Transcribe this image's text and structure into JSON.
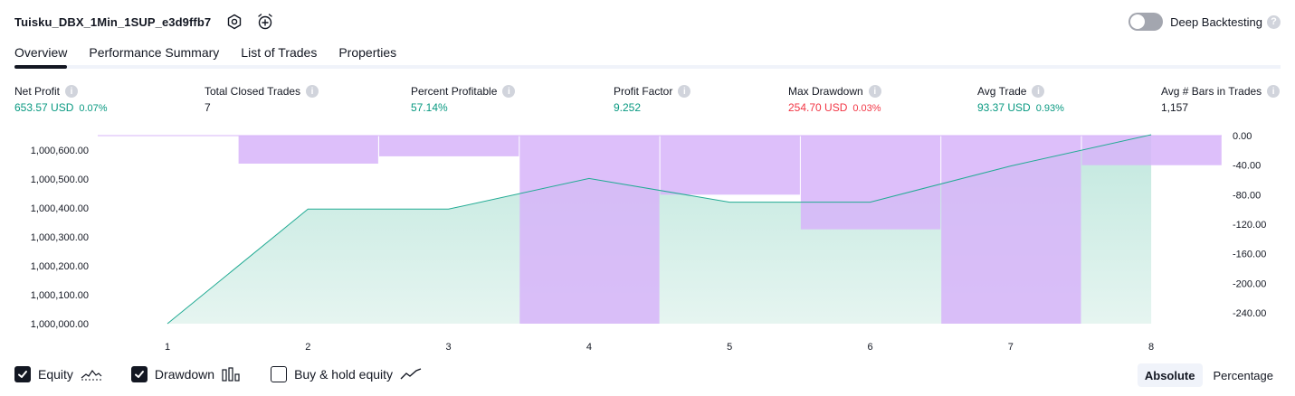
{
  "header": {
    "strategy_name": "Tuisku_DBX_1Min_1SUP_e3d9ffb7",
    "icons": [
      "settings-icon",
      "alarm-add-icon"
    ]
  },
  "deep_backtesting": {
    "label": "Deep Backtesting",
    "enabled": false,
    "help": "?"
  },
  "tabs": [
    {
      "label": "Overview",
      "active": true
    },
    {
      "label": "Performance Summary",
      "active": false
    },
    {
      "label": "List of Trades",
      "active": false
    },
    {
      "label": "Properties",
      "active": false
    }
  ],
  "metrics": {
    "net_profit": {
      "label": "Net Profit",
      "value": "653.57 USD",
      "sub": "0.07%"
    },
    "total_closed_trades": {
      "label": "Total Closed Trades",
      "value": "7"
    },
    "percent_profitable": {
      "label": "Percent Profitable",
      "value": "57.14%"
    },
    "profit_factor": {
      "label": "Profit Factor",
      "value": "9.252"
    },
    "max_drawdown": {
      "label": "Max Drawdown",
      "value": "254.70 USD",
      "sub": "0.03%"
    },
    "avg_trade": {
      "label": "Avg Trade",
      "value": "93.37 USD",
      "sub": "0.93%"
    },
    "avg_bars": {
      "label": "Avg # Bars in Trades",
      "value": "1,157"
    },
    "info_glyph": "i"
  },
  "chart_data": {
    "type": "area",
    "x": [
      1,
      2,
      3,
      4,
      5,
      6,
      7,
      8
    ],
    "x_ticks": [
      "1",
      "2",
      "3",
      "4",
      "5",
      "6",
      "7",
      "8"
    ],
    "left_axis": {
      "ticks": [
        "1,000,000.00",
        "1,000,100.00",
        "1,000,200.00",
        "1,000,300.00",
        "1,000,400.00",
        "1,000,500.00",
        "1,000,600.00"
      ],
      "range": [
        1000000,
        1000600
      ]
    },
    "right_axis": {
      "ticks": [
        "0.00",
        "-40.00",
        "-80.00",
        "-120.00",
        "-160.00",
        "-200.00",
        "-240.00"
      ],
      "range": [
        -240,
        0
      ]
    },
    "series": [
      {
        "name": "Equity",
        "axis": "left",
        "values": [
          1000000,
          1000396,
          1000396,
          1000502,
          1000420,
          1000420,
          1000545,
          1000653
        ]
      },
      {
        "name": "Drawdown",
        "axis": "right",
        "values": [
          0,
          -38,
          -28,
          -254.7,
          -80,
          -127,
          -254.7,
          -40
        ]
      }
    ],
    "colors": {
      "equity_line": "#22ab94",
      "equity_fill": "#b7e4d9",
      "drawdown_bar": "#d7b4f9",
      "overlap": "#b3b3ec"
    }
  },
  "legend": {
    "equity": {
      "label": "Equity",
      "checked": true
    },
    "drawdown": {
      "label": "Drawdown",
      "checked": true
    },
    "buy_hold": {
      "label": "Buy & hold equity",
      "checked": false
    }
  },
  "mode": {
    "absolute": "Absolute",
    "percentage": "Percentage",
    "selected": "Absolute"
  }
}
